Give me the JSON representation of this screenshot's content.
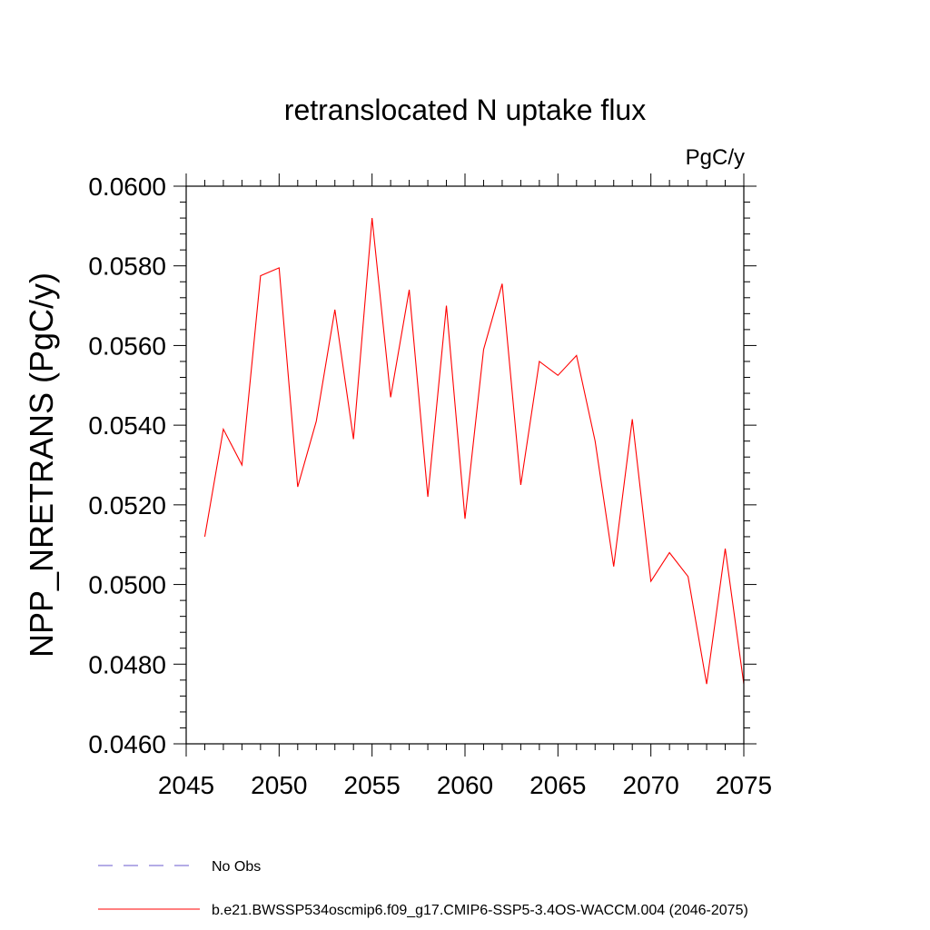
{
  "chart_data": {
    "type": "line",
    "title": "retranslocated N uptake flux",
    "units": "PgC/y",
    "xlabel": "",
    "ylabel": "NPP_NRETRANS  (PgC/y)",
    "xlim": [
      2045,
      2075
    ],
    "ylim": [
      0.046,
      0.06
    ],
    "x_ticks": [
      2045,
      2050,
      2055,
      2060,
      2065,
      2070,
      2075
    ],
    "y_ticks": [
      "0.0460",
      "0.0480",
      "0.0500",
      "0.0520",
      "0.0540",
      "0.0560",
      "0.0580",
      "0.0600"
    ],
    "x": [
      2046,
      2047,
      2048,
      2049,
      2050,
      2051,
      2052,
      2053,
      2054,
      2055,
      2056,
      2057,
      2058,
      2059,
      2060,
      2061,
      2062,
      2063,
      2064,
      2065,
      2066,
      2067,
      2068,
      2069,
      2070,
      2071,
      2072,
      2073,
      2074,
      2075
    ],
    "series": [
      {
        "name": "b.e21.BWSSP534oscmip6.f09_g17.CMIP6-SSP5-3.4OS-WACCM.004 (2046-2075)",
        "color": "#ff0000",
        "values": [
          0.0512,
          0.0539,
          0.053,
          0.05775,
          0.05795,
          0.05245,
          0.0541,
          0.0569,
          0.05365,
          0.0592,
          0.0547,
          0.0574,
          0.0522,
          0.057,
          0.05165,
          0.0559,
          0.05755,
          0.0525,
          0.0556,
          0.05525,
          0.05575,
          0.0536,
          0.05045,
          0.05415,
          0.05008,
          0.0508,
          0.0502,
          0.0475,
          0.0509,
          0.0475
        ]
      }
    ],
    "legend": [
      {
        "label": "No Obs",
        "color": "#6a5acd",
        "style": "dashed"
      },
      {
        "label": "b.e21.BWSSP534oscmip6.f09_g17.CMIP6-SSP5-3.4OS-WACCM.004 (2046-2075)",
        "color": "#ff0000",
        "style": "solid"
      }
    ],
    "legend_position": "bottom",
    "grid": false
  }
}
